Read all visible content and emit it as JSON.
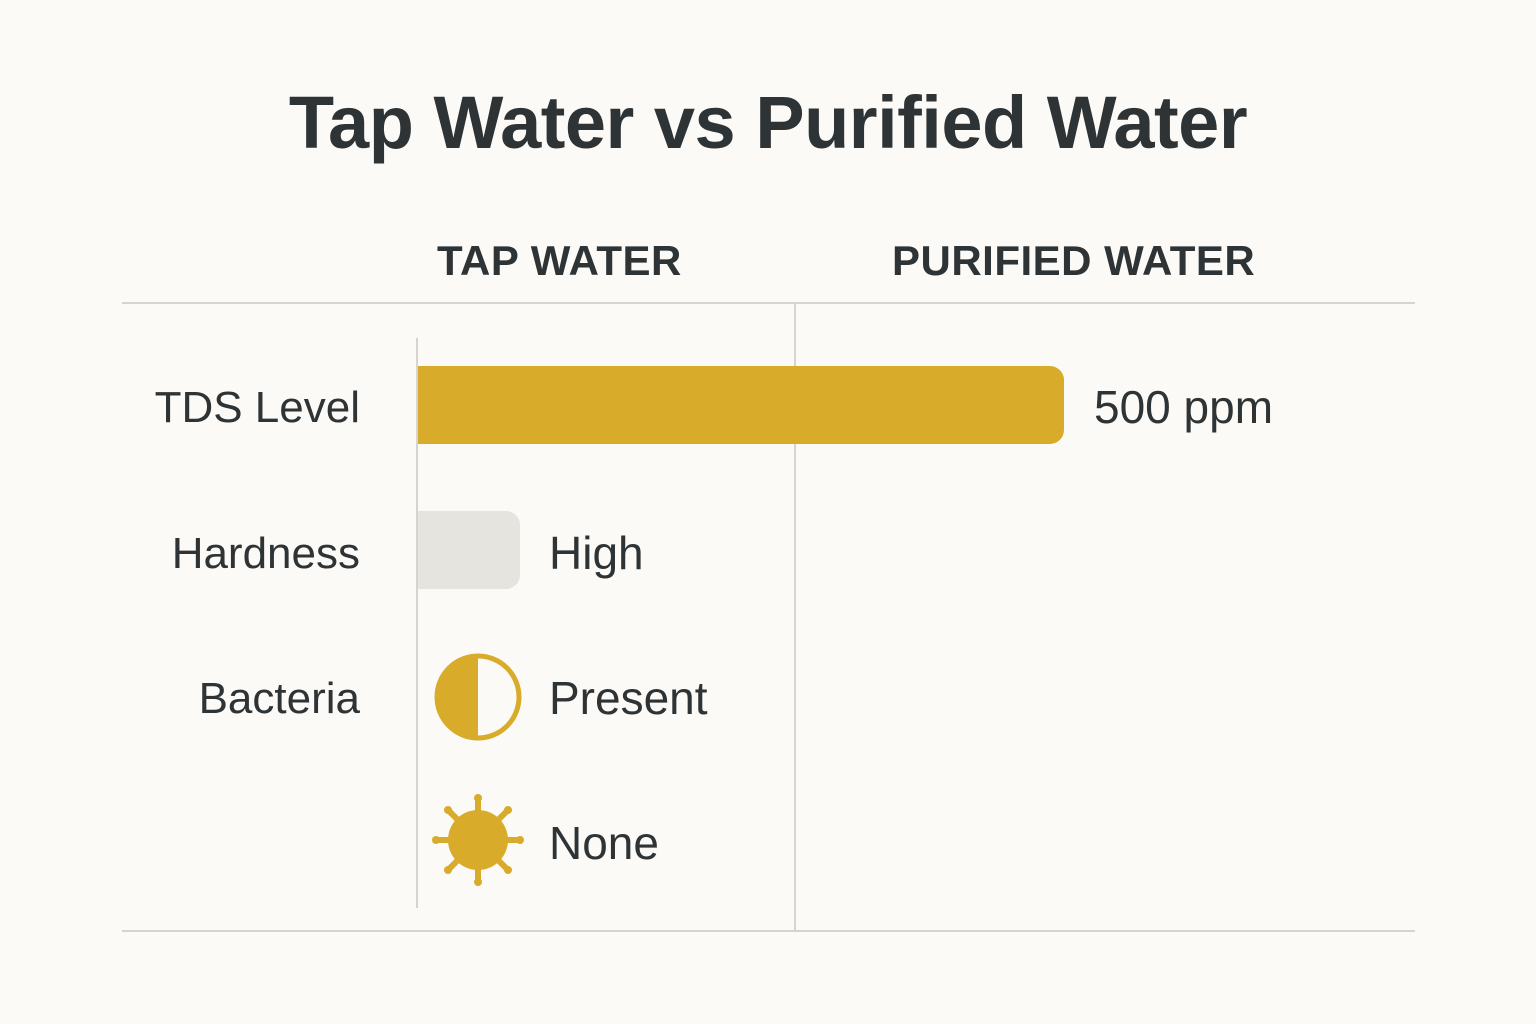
{
  "title": "Tap Water vs Purified Water",
  "columns": {
    "tap": "TAP WATER",
    "purified": "PURIFIED WATER"
  },
  "rows": [
    {
      "label": "TDS Level",
      "value": "500 ppm",
      "fraction": 1.0
    },
    {
      "label": "Hardness",
      "value": "High"
    },
    {
      "label": "Bacteria",
      "value": "Present",
      "icon": "half-circle-icon"
    }
  ],
  "extra_item": {
    "value": "None",
    "icon": "bacteria-icon"
  },
  "colors": {
    "accent": "#d9ab2b",
    "bar_gray": "#e6e4df",
    "divider": "#d6d4cf",
    "background": "#fbfaf6",
    "text": "#2e3336"
  }
}
